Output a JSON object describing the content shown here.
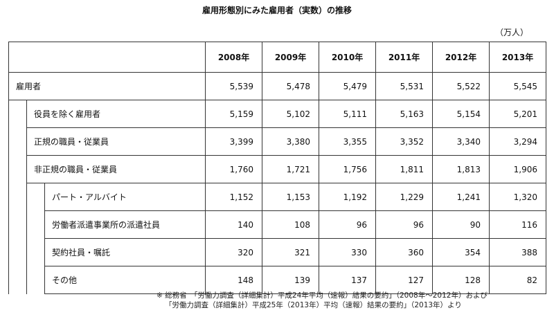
{
  "title": "雇用形態別にみた雇用者（実数）の推移",
  "unit": "（万人）",
  "years": [
    "2008年",
    "2009年",
    "2010年",
    "2011年",
    "2012年",
    "2013年"
  ],
  "rows": [
    {
      "label": "雇用者",
      "level": 0,
      "values": [
        "5,539",
        "5,478",
        "5,479",
        "5,531",
        "5,522",
        "5,545"
      ]
    },
    {
      "label": "役員を除く雇用者",
      "level": 1,
      "values": [
        "5,159",
        "5,102",
        "5,111",
        "5,163",
        "5,154",
        "5,201"
      ]
    },
    {
      "label": "正規の職員・従業員",
      "level": 1,
      "values": [
        "3,399",
        "3,380",
        "3,355",
        "3,352",
        "3,340",
        "3,294"
      ]
    },
    {
      "label": "非正規の職員・従業員",
      "level": 1,
      "values": [
        "1,760",
        "1,721",
        "1,756",
        "1,811",
        "1,813",
        "1,906"
      ]
    },
    {
      "label": "パート・アルバイト",
      "level": 2,
      "values": [
        "1,152",
        "1,153",
        "1,192",
        "1,229",
        "1,241",
        "1,320"
      ]
    },
    {
      "label": "労働者派遣事業所の派遣社員",
      "level": 2,
      "values": [
        "140",
        "108",
        "96",
        "96",
        "90",
        "116"
      ]
    },
    {
      "label": "契約社員・嘱託",
      "level": 2,
      "values": [
        "320",
        "321",
        "330",
        "360",
        "354",
        "388"
      ]
    },
    {
      "label": "その他",
      "level": 2,
      "values": [
        "148",
        "139",
        "137",
        "127",
        "128",
        "82"
      ]
    }
  ],
  "note": {
    "line1": "※ 総務省　「労働力調査（詳細集計）平成24年平均（速報）結果の要約」（2008年～2012年）および",
    "line2": "「労働力調査（詳細集計）平成25年（2013年）平均（速報）結果の要約」（2013年）より"
  }
}
